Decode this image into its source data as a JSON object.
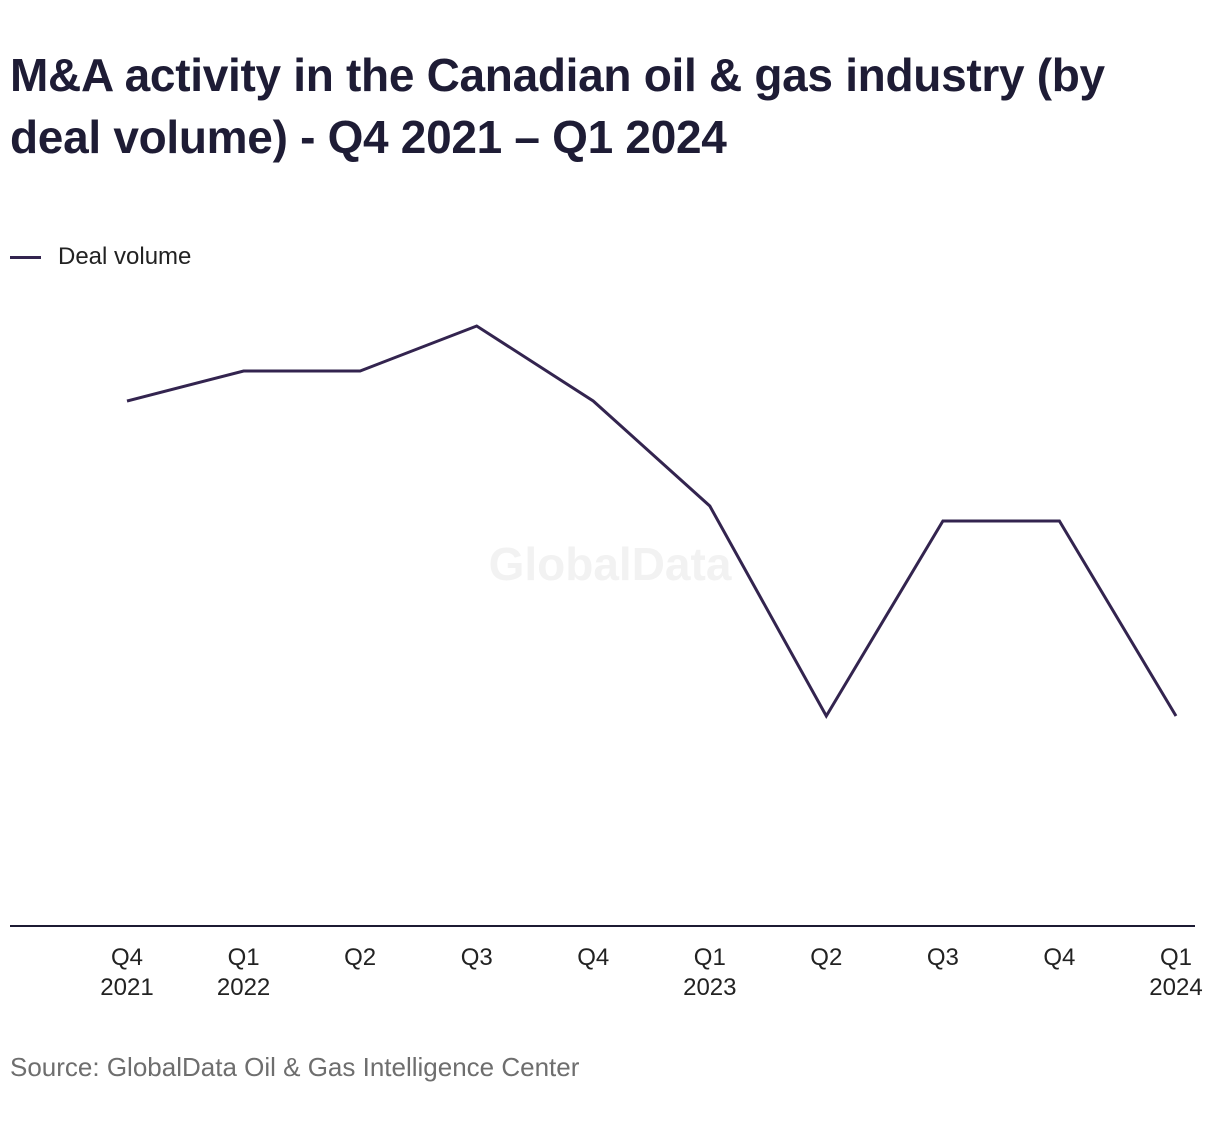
{
  "title": "M&A activity in the Canadian oil & gas industry (by deal volume) - Q4 2021 – Q1 2024",
  "legend": {
    "label": "Deal volume"
  },
  "watermark": "GlobalData",
  "source": "Source: GlobalData Oil & Gas Intelligence Center",
  "colors": {
    "line": "#33244f",
    "title": "#1e1c35",
    "axis": "#1c1a33",
    "source": "#6e6e6e",
    "watermark": "#f2f2f2"
  },
  "chart_data": {
    "type": "line",
    "title": "M&A activity in the Canadian oil & gas industry (by deal volume) - Q4 2021 – Q1 2024",
    "xlabel": "",
    "ylabel": "",
    "categories": [
      [
        "Q4",
        "2021"
      ],
      [
        "Q1",
        "2022"
      ],
      [
        "Q2",
        ""
      ],
      [
        "Q3",
        ""
      ],
      [
        "Q4",
        ""
      ],
      [
        "Q1",
        "2023"
      ],
      [
        "Q2",
        ""
      ],
      [
        "Q3",
        ""
      ],
      [
        "Q4",
        ""
      ],
      [
        "Q1",
        "2024"
      ]
    ],
    "series": [
      {
        "name": "Deal volume",
        "values": [
          35,
          37,
          37,
          40,
          35,
          28,
          14,
          27,
          27,
          14
        ]
      }
    ],
    "ylim": [
      0,
      42
    ],
    "y_axis_visible": false,
    "grid": false,
    "legend_position": "top-left"
  }
}
